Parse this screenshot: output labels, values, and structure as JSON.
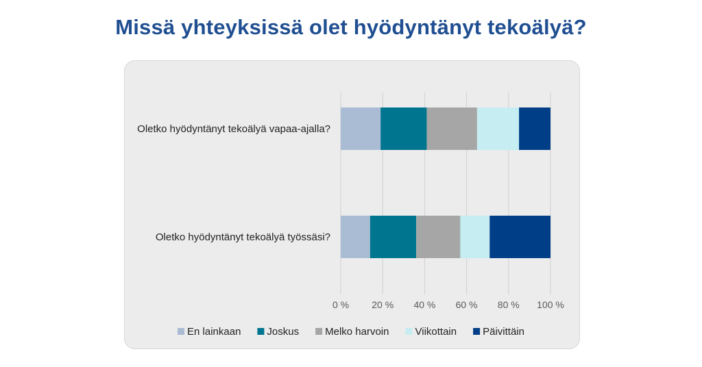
{
  "title": "Missä yhteyksissä olet hyödyntänyt tekoälyä?",
  "chart_data": {
    "type": "bar",
    "orientation": "horizontal",
    "stacked": "100%",
    "categories": [
      "Oletko hyödyntänyt tekoälyä vapaa-ajalla?",
      "Oletko hyödyntänyt tekoälyä työssäsi?"
    ],
    "series": [
      {
        "name": "En lainkaan",
        "color": "#a9bcd4",
        "values": [
          19,
          14
        ]
      },
      {
        "name": "Joskus",
        "color": "#00758f",
        "values": [
          22,
          22
        ]
      },
      {
        "name": "Melko harvoin",
        "color": "#a6a6a6",
        "values": [
          24,
          21
        ]
      },
      {
        "name": "Viikottain",
        "color": "#c5edf2",
        "values": [
          20,
          14
        ]
      },
      {
        "name": "Päivittäin",
        "color": "#003f87",
        "values": [
          15,
          29
        ]
      }
    ],
    "xlim": [
      0,
      100
    ],
    "x_ticks": [
      "0 %",
      "20 %",
      "40 %",
      "60 %",
      "80 %",
      "100 %"
    ],
    "grid": "vertical",
    "legend": "bottom"
  }
}
